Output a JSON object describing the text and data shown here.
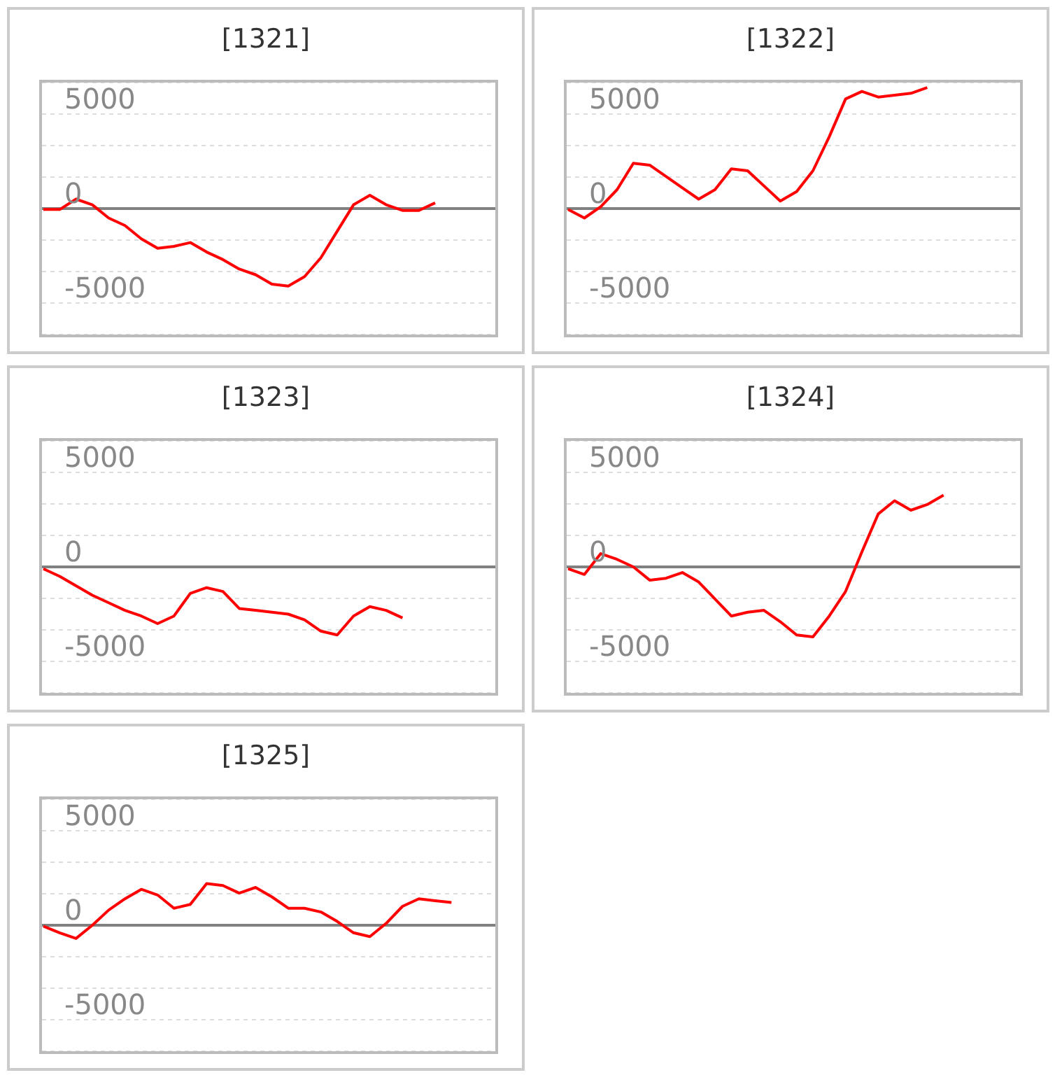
{
  "chart_data": [
    {
      "type": "line",
      "title": "[1321]",
      "categories": [
        null,
        null,
        null,
        null,
        null,
        null,
        null,
        null,
        null,
        null,
        null,
        null,
        null,
        null,
        null,
        null,
        null,
        null,
        null,
        null,
        null,
        null,
        null,
        null,
        null,
        null,
        null,
        null
      ],
      "series": [
        {
          "color": "#ff0000",
          "values": [
            -50,
            -50,
            500,
            200,
            -500,
            -900,
            -1600,
            -2100,
            -2000,
            -1800,
            -2300,
            -2700,
            -3200,
            -3500,
            -4000,
            -4100,
            -3600,
            -2600,
            -1200,
            200,
            700,
            200,
            -100,
            -100,
            300,
            null,
            null,
            null
          ]
        }
      ],
      "ylim": [
        -6667,
        6667
      ],
      "yticks": [
        {
          "value": -5000,
          "label": "-5000"
        },
        {
          "value": -3333,
          "label": null
        },
        {
          "value": -1667,
          "label": null
        },
        {
          "value": 0,
          "label": "0"
        },
        {
          "value": 1667,
          "label": null
        },
        {
          "value": 3333,
          "label": null
        },
        {
          "value": 5000,
          "label": "5000"
        }
      ],
      "grid": "y",
      "ref_lines": [
        {
          "axis": "y",
          "value": 0,
          "color": "#808080"
        }
      ],
      "tick_labels": "y",
      "marker": "none",
      "line_style": "solid"
    },
    {
      "type": "line",
      "title": "[1322]",
      "categories": [
        null,
        null,
        null,
        null,
        null,
        null,
        null,
        null,
        null,
        null,
        null,
        null,
        null,
        null,
        null,
        null,
        null,
        null,
        null,
        null,
        null,
        null,
        null,
        null,
        null,
        null,
        null,
        null
      ],
      "series": [
        {
          "color": "#ff0000",
          "values": [
            -50,
            -500,
            100,
            1000,
            2400,
            2300,
            1700,
            1100,
            500,
            1000,
            2100,
            2000,
            1200,
            400,
            900,
            2000,
            3800,
            5800,
            6200,
            5900,
            6000,
            6100,
            6400,
            null,
            null,
            null,
            null,
            null
          ]
        }
      ],
      "ylim": [
        -6667,
        6667
      ],
      "yticks": [
        {
          "value": -5000,
          "label": "-5000"
        },
        {
          "value": -3333,
          "label": null
        },
        {
          "value": -1667,
          "label": null
        },
        {
          "value": 0,
          "label": "0"
        },
        {
          "value": 1667,
          "label": null
        },
        {
          "value": 3333,
          "label": null
        },
        {
          "value": 5000,
          "label": "5000"
        }
      ],
      "grid": "y",
      "ref_lines": [
        {
          "axis": "y",
          "value": 0,
          "color": "#808080"
        }
      ],
      "tick_labels": "y",
      "marker": "none",
      "line_style": "solid"
    },
    {
      "type": "line",
      "title": "[1323]",
      "categories": [
        null,
        null,
        null,
        null,
        null,
        null,
        null,
        null,
        null,
        null,
        null,
        null,
        null,
        null,
        null,
        null,
        null,
        null,
        null,
        null,
        null,
        null,
        null,
        null,
        null,
        null,
        null,
        null
      ],
      "series": [
        {
          "color": "#ff0000",
          "values": [
            -100,
            -500,
            -1000,
            -1500,
            -1900,
            -2300,
            -2600,
            -3000,
            -2600,
            -1400,
            -1100,
            -1300,
            -2200,
            -2300,
            -2400,
            -2500,
            -2800,
            -3400,
            -3600,
            -2600,
            -2100,
            -2300,
            -2700,
            null,
            null,
            null,
            null,
            null
          ]
        }
      ],
      "ylim": [
        -6667,
        6667
      ],
      "yticks": [
        {
          "value": -5000,
          "label": "-5000"
        },
        {
          "value": -3333,
          "label": null
        },
        {
          "value": -1667,
          "label": null
        },
        {
          "value": 0,
          "label": "0"
        },
        {
          "value": 1667,
          "label": null
        },
        {
          "value": 3333,
          "label": null
        },
        {
          "value": 5000,
          "label": "5000"
        }
      ],
      "grid": "y",
      "ref_lines": [
        {
          "axis": "y",
          "value": 0,
          "color": "#808080"
        }
      ],
      "tick_labels": "y",
      "marker": "none",
      "line_style": "solid"
    },
    {
      "type": "line",
      "title": "[1324]",
      "categories": [
        null,
        null,
        null,
        null,
        null,
        null,
        null,
        null,
        null,
        null,
        null,
        null,
        null,
        null,
        null,
        null,
        null,
        null,
        null,
        null,
        null,
        null,
        null,
        null,
        null,
        null,
        null,
        null
      ],
      "series": [
        {
          "color": "#ff0000",
          "values": [
            -100,
            -400,
            700,
            400,
            0,
            -700,
            -600,
            -300,
            -800,
            -1700,
            -2600,
            -2400,
            -2300,
            -2900,
            -3600,
            -3700,
            -2600,
            -1300,
            800,
            2800,
            3500,
            3000,
            3300,
            3800,
            null,
            null,
            null,
            null
          ]
        }
      ],
      "ylim": [
        -6667,
        6667
      ],
      "yticks": [
        {
          "value": -5000,
          "label": "-5000"
        },
        {
          "value": -3333,
          "label": null
        },
        {
          "value": -1667,
          "label": null
        },
        {
          "value": 0,
          "label": "0"
        },
        {
          "value": 1667,
          "label": null
        },
        {
          "value": 3333,
          "label": null
        },
        {
          "value": 5000,
          "label": "5000"
        }
      ],
      "grid": "y",
      "ref_lines": [
        {
          "axis": "y",
          "value": 0,
          "color": "#808080"
        }
      ],
      "tick_labels": "y",
      "marker": "none",
      "line_style": "solid"
    },
    {
      "type": "line",
      "title": "[1325]",
      "categories": [
        null,
        null,
        null,
        null,
        null,
        null,
        null,
        null,
        null,
        null,
        null,
        null,
        null,
        null,
        null,
        null,
        null,
        null,
        null,
        null,
        null,
        null,
        null,
        null,
        null,
        null,
        null,
        null
      ],
      "series": [
        {
          "color": "#ff0000",
          "values": [
            -50,
            -400,
            -700,
            0,
            800,
            1400,
            1900,
            1600,
            900,
            1100,
            2200,
            2100,
            1700,
            2000,
            1500,
            900,
            900,
            700,
            200,
            -400,
            -600,
            100,
            1000,
            1400,
            1300,
            1200,
            null,
            null
          ]
        }
      ],
      "ylim": [
        -6667,
        6667
      ],
      "yticks": [
        {
          "value": -5000,
          "label": "-5000"
        },
        {
          "value": -3333,
          "label": null
        },
        {
          "value": -1667,
          "label": null
        },
        {
          "value": 0,
          "label": "0"
        },
        {
          "value": 1667,
          "label": null
        },
        {
          "value": 3333,
          "label": null
        },
        {
          "value": 5000,
          "label": "5000"
        }
      ],
      "grid": "y",
      "ref_lines": [
        {
          "axis": "y",
          "value": 0,
          "color": "#808080"
        }
      ],
      "tick_labels": "y",
      "marker": "none",
      "line_style": "solid"
    }
  ]
}
